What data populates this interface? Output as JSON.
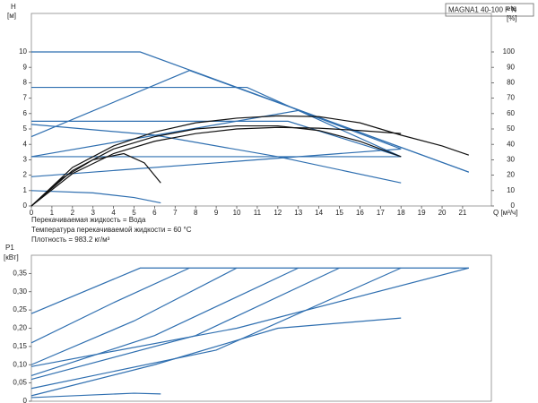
{
  "chart_data": [
    {
      "type": "line",
      "model": "MAGNA1 40-100 F N",
      "ylabel": [
        "H",
        "[м]"
      ],
      "y2label": [
        "eta",
        "[%]"
      ],
      "xlabel": "Q [м³/ч]",
      "notes": [
        "Перекачиваемая жидкость = Вода",
        "Температура перекачиваемой жидкости = 60 °C",
        "Плотность = 983.2 кг/м³"
      ],
      "xlim": [
        0,
        22.4
      ],
      "xticks": [
        0,
        1,
        2,
        3,
        4,
        5,
        6,
        7,
        8,
        9,
        10,
        11,
        12,
        13,
        14,
        15,
        16,
        17,
        18,
        19,
        20,
        21
      ],
      "ylim": [
        0,
        12.5
      ],
      "yticks": [
        0,
        1,
        2,
        3,
        4,
        5,
        6,
        7,
        8,
        9,
        10
      ],
      "y2lim": [
        0,
        125
      ],
      "y2ticks": [
        0,
        10,
        20,
        30,
        40,
        50,
        60,
        70,
        80,
        90,
        100
      ],
      "grid": false,
      "series": [
        {
          "color": "#2f6fb0",
          "x": [
            0,
            5.3,
            21.3
          ],
          "values": [
            10,
            10,
            2.2
          ]
        },
        {
          "color": "#2f6fb0",
          "x": [
            0,
            10.5,
            18
          ],
          "values": [
            7.7,
            7.7,
            3.2
          ]
        },
        {
          "color": "#2f6fb0",
          "x": [
            0,
            7.7,
            21.3
          ],
          "values": [
            4.5,
            8.8,
            2.2
          ]
        },
        {
          "color": "#2f6fb0",
          "x": [
            0,
            12.5,
            18
          ],
          "values": [
            5.5,
            5.5,
            3.2
          ]
        },
        {
          "color": "#2f6fb0",
          "x": [
            0,
            6,
            12,
            18
          ],
          "values": [
            5.3,
            4.6,
            3.2,
            1.5
          ]
        },
        {
          "color": "#2f6fb0",
          "x": [
            0,
            18
          ],
          "values": [
            3.2,
            3.2
          ]
        },
        {
          "color": "#2f6fb0",
          "x": [
            0,
            18
          ],
          "values": [
            1.9,
            3.7
          ]
        },
        {
          "color": "#2f6fb0",
          "x": [
            0,
            13,
            18
          ],
          "values": [
            3.2,
            6.2,
            3.7
          ]
        },
        {
          "color": "#2f6fb0",
          "x": [
            0,
            3,
            5,
            6.3
          ],
          "values": [
            1,
            0.85,
            0.55,
            0.2
          ]
        },
        {
          "color": "#111111",
          "x": [
            0,
            2,
            4,
            6,
            8,
            10,
            12,
            14,
            16,
            18,
            20,
            21.3
          ],
          "values": [
            0,
            2.5,
            3.9,
            4.8,
            5.4,
            5.7,
            5.85,
            5.8,
            5.4,
            4.6,
            3.9,
            3.3
          ]
        },
        {
          "color": "#111111",
          "x": [
            0,
            2,
            4,
            6,
            8,
            10,
            12,
            14,
            16,
            18
          ],
          "values": [
            0,
            2.3,
            3.7,
            4.5,
            5,
            5.2,
            5.2,
            4.9,
            4.2,
            3.2
          ]
        },
        {
          "color": "#111111",
          "x": [
            0,
            2,
            4,
            6,
            8,
            10,
            12,
            14,
            16,
            18
          ],
          "values": [
            0,
            2.1,
            3.4,
            4.2,
            4.7,
            5,
            5.1,
            5.05,
            4.9,
            4.7
          ]
        },
        {
          "color": "#111111",
          "x": [
            0,
            1.5,
            3,
            4.5,
            5.5,
            6.3
          ],
          "values": [
            0,
            1.8,
            3,
            3.4,
            2.8,
            1.5
          ]
        }
      ]
    },
    {
      "type": "line",
      "ylabel": [
        "P1",
        "[кВт]"
      ],
      "xlim": [
        0,
        22.4
      ],
      "ylim": [
        0,
        0.4
      ],
      "yticks": [
        0,
        {
          "value": 0.05,
          "label": "0,05"
        },
        {
          "value": 0.1,
          "label": "0,10"
        },
        {
          "value": 0.15,
          "label": "0,15"
        },
        {
          "value": 0.2,
          "label": "0,20"
        },
        {
          "value": 0.25,
          "label": "0,25"
        },
        {
          "value": 0.3,
          "label": "0,30"
        },
        {
          "value": 0.35,
          "label": "0,35"
        }
      ],
      "grid": false,
      "series": [
        {
          "color": "#2f6fb0",
          "x": [
            0,
            5.3,
            21.3
          ],
          "values": [
            0.24,
            0.365,
            0.365
          ]
        },
        {
          "color": "#2f6fb0",
          "x": [
            0,
            4,
            7.7
          ],
          "values": [
            0.16,
            0.27,
            0.365
          ]
        },
        {
          "color": "#2f6fb0",
          "x": [
            0,
            5,
            10
          ],
          "values": [
            0.1,
            0.22,
            0.365
          ]
        },
        {
          "color": "#2f6fb0",
          "x": [
            0,
            6,
            13
          ],
          "values": [
            0.07,
            0.18,
            0.365
          ]
        },
        {
          "color": "#2f6fb0",
          "x": [
            0,
            8,
            15
          ],
          "values": [
            0.06,
            0.18,
            0.365
          ]
        },
        {
          "color": "#2f6fb0",
          "x": [
            0,
            9,
            18
          ],
          "values": [
            0.035,
            0.14,
            0.365
          ]
        },
        {
          "color": "#2f6fb0",
          "x": [
            0,
            10,
            21.3
          ],
          "values": [
            0.095,
            0.2,
            0.365
          ]
        },
        {
          "color": "#2f6fb0",
          "x": [
            0,
            6,
            12,
            18
          ],
          "values": [
            0.015,
            0.1,
            0.2,
            0.228
          ]
        },
        {
          "color": "#2f6fb0",
          "x": [
            0,
            5,
            6.3
          ],
          "values": [
            0.01,
            0.022,
            0.02
          ]
        }
      ]
    }
  ]
}
